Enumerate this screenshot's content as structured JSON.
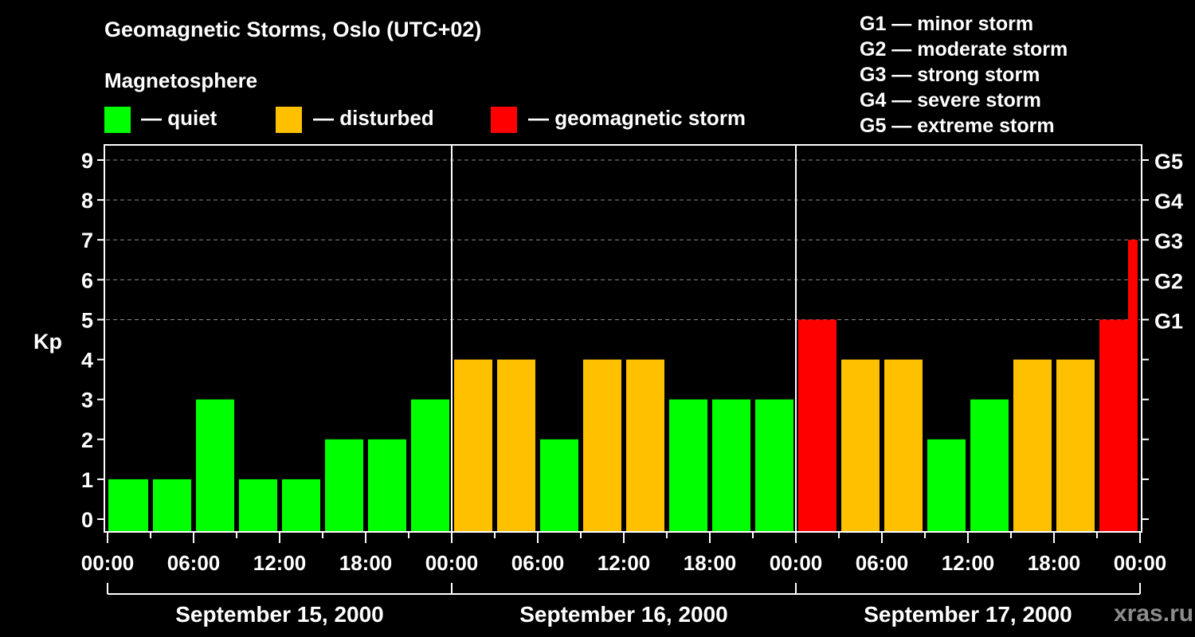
{
  "header": {
    "title": "Geomagnetic Storms, Oslo (UTC+02)",
    "subtitle": "Magnetosphere"
  },
  "legend": {
    "items": [
      {
        "label": "— quiet",
        "color": "#00ff00"
      },
      {
        "label": "— disturbed",
        "color": "#ffc000"
      },
      {
        "label": "— geomagnetic storm",
        "color": "#ff0000"
      }
    ]
  },
  "g_scale": {
    "items": [
      {
        "label": "G1 — minor storm"
      },
      {
        "label": "G2 — moderate storm"
      },
      {
        "label": "G3 — strong storm"
      },
      {
        "label": "G4 — severe storm"
      },
      {
        "label": "G5 — extreme storm"
      }
    ]
  },
  "watermark": "xras.ru",
  "chart_data": {
    "type": "bar",
    "title": "Geomagnetic Storms, Oslo (UTC+02)",
    "subtitle": "Magnetosphere",
    "xlabel": "",
    "ylabel": "Kp",
    "ylim": [
      0,
      9
    ],
    "yticks": [
      0,
      1,
      2,
      3,
      4,
      5,
      6,
      7,
      8,
      9
    ],
    "right_axis_ticks": [
      {
        "kp": 5,
        "label": "G1"
      },
      {
        "kp": 6,
        "label": "G2"
      },
      {
        "kp": 7,
        "label": "G3"
      },
      {
        "kp": 8,
        "label": "G4"
      },
      {
        "kp": 9,
        "label": "G5"
      }
    ],
    "grid": "dashed horizontal at Kp 5-9",
    "xtick_labels": [
      "00:00",
      "06:00",
      "12:00",
      "18:00",
      "00:00",
      "06:00",
      "12:00",
      "18:00",
      "00:00",
      "06:00",
      "12:00",
      "18:00",
      "00:00"
    ],
    "days": [
      "September 15, 2000",
      "September 16, 2000",
      "September 17, 2000"
    ],
    "categories": [
      "Sep 15 00:00",
      "Sep 15 03:00",
      "Sep 15 06:00",
      "Sep 15 09:00",
      "Sep 15 12:00",
      "Sep 15 15:00",
      "Sep 15 18:00",
      "Sep 15 21:00",
      "Sep 16 00:00",
      "Sep 16 03:00",
      "Sep 16 06:00",
      "Sep 16 09:00",
      "Sep 16 12:00",
      "Sep 16 15:00",
      "Sep 16 18:00",
      "Sep 16 21:00",
      "Sep 17 00:00",
      "Sep 17 03:00",
      "Sep 17 06:00",
      "Sep 17 09:00",
      "Sep 17 12:00",
      "Sep 17 15:00",
      "Sep 17 18:00",
      "Sep 17 21:00",
      "Sep 17 23:00"
    ],
    "values": [
      1,
      1,
      3,
      1,
      1,
      2,
      2,
      3,
      4,
      4,
      2,
      4,
      4,
      3,
      3,
      3,
      5,
      4,
      4,
      2,
      3,
      4,
      4,
      5,
      7
    ],
    "status": [
      "quiet",
      "quiet",
      "quiet",
      "quiet",
      "quiet",
      "quiet",
      "quiet",
      "quiet",
      "disturbed",
      "disturbed",
      "quiet",
      "disturbed",
      "disturbed",
      "quiet",
      "quiet",
      "quiet",
      "storm",
      "disturbed",
      "disturbed",
      "quiet",
      "quiet",
      "disturbed",
      "disturbed",
      "storm",
      "storm"
    ],
    "colors": {
      "quiet": "#00ff00",
      "disturbed": "#ffc000",
      "storm": "#ff0000"
    },
    "legend_position": "top"
  }
}
